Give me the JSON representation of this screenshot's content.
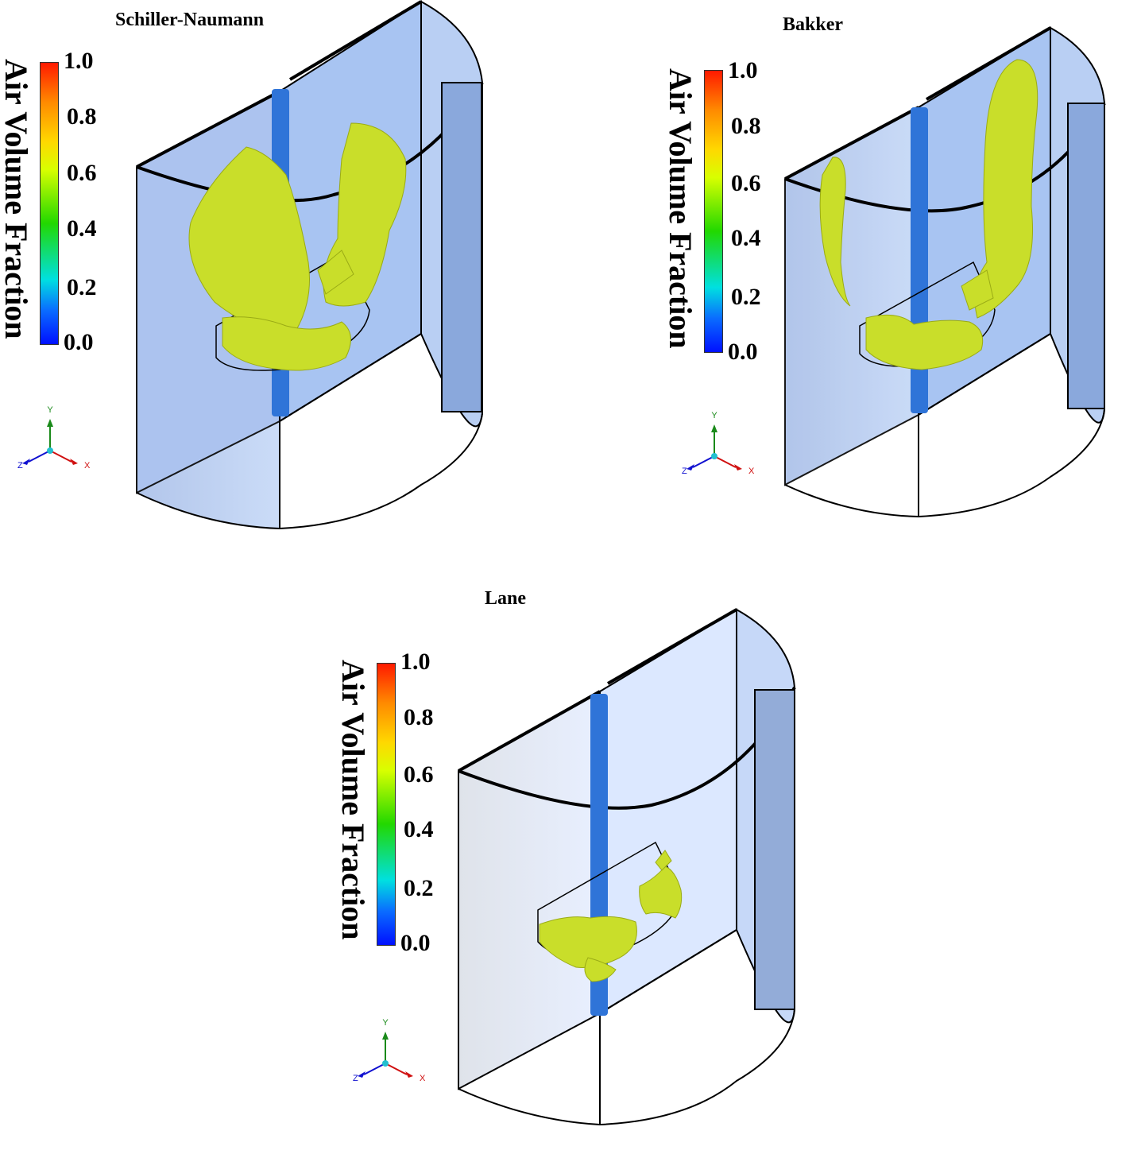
{
  "panels": [
    {
      "title": "Schiller-Naumann",
      "colorbar": {
        "label": "Air Volume Fraction",
        "ticks": [
          "1.0",
          "0.8",
          "0.6",
          "0.4",
          "0.2",
          "0.0"
        ]
      },
      "axes": {
        "x": "X",
        "y": "Y",
        "z": "Z"
      }
    },
    {
      "title": "Bakker",
      "colorbar": {
        "label": "Air Volume Fraction",
        "ticks": [
          "1.0",
          "0.8",
          "0.6",
          "0.4",
          "0.2",
          "0.0"
        ]
      },
      "axes": {
        "x": "X",
        "y": "Y",
        "z": "Z"
      }
    },
    {
      "title": "Lane",
      "colorbar": {
        "label": "Air Volume Fraction",
        "ticks": [
          "1.0",
          "0.8",
          "0.6",
          "0.4",
          "0.2",
          "0.0"
        ]
      },
      "axes": {
        "x": "X",
        "y": "Y",
        "z": "Z"
      }
    }
  ],
  "colors": {
    "isosurface": "#c9de2a",
    "tank_face": "#a9c4f0",
    "shaft": "#2f74d8",
    "colormap": [
      "#0010ff",
      "#0a6cff",
      "#00e0e0",
      "#22d800",
      "#d8ff00",
      "#ffd800",
      "#ff8a00",
      "#ff1a00"
    ]
  }
}
